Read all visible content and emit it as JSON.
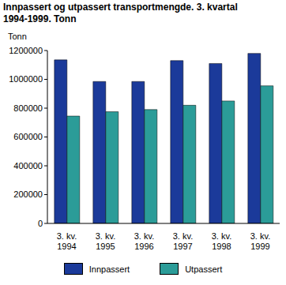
{
  "chart_data": {
    "type": "bar",
    "title": "Innpassert og utpassert transportmengde. 3. kvartal 1994-1999. Tonn",
    "y_label": "Tonn",
    "categories": [
      "3. kv. 1994",
      "3. kv. 1995",
      "3. kv. 1996",
      "3. kv. 1997",
      "3. kv. 1998",
      "3. kv. 1999"
    ],
    "series": [
      {
        "name": "Innpassert",
        "color": "#1b3a9a",
        "values": [
          1135000,
          985000,
          985000,
          1130000,
          1110000,
          1180000
        ]
      },
      {
        "name": "Utpassert",
        "color": "#2b9c98",
        "values": [
          745000,
          775000,
          790000,
          820000,
          850000,
          955000
        ]
      }
    ],
    "ylim": [
      0,
      1200000
    ],
    "yticks": [
      0,
      200000,
      400000,
      600000,
      800000,
      1000000,
      1200000
    ],
    "grid": false,
    "legend": "bottom"
  }
}
